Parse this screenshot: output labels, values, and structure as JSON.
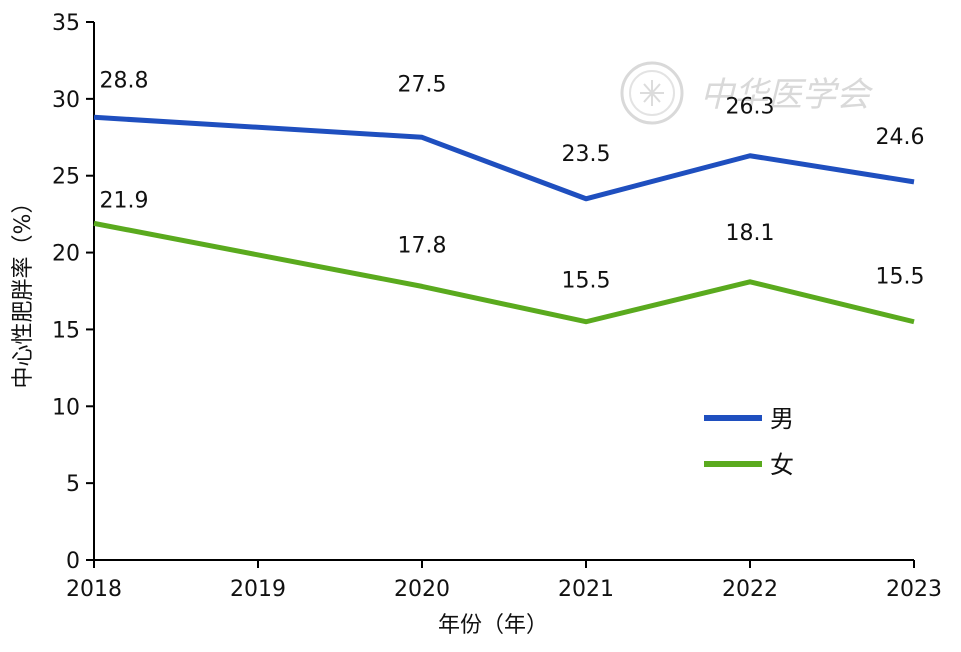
{
  "chart_data": {
    "type": "line",
    "xlabel": "年份（年）",
    "ylabel": "中心性肥胖率（%）",
    "categories": [
      "2018",
      "2019",
      "2020",
      "2021",
      "2022",
      "2023"
    ],
    "ylim": [
      0,
      35
    ],
    "yticks": [
      0,
      5,
      10,
      15,
      20,
      25,
      30,
      35
    ],
    "legend_position": "right",
    "grid": false,
    "series": [
      {
        "name": "男",
        "color": "#1f4fbf",
        "x": [
          "2018",
          "2020",
          "2021",
          "2022",
          "2023"
        ],
        "values": [
          28.8,
          27.5,
          23.5,
          26.3,
          24.6
        ],
        "labels": [
          "28.8",
          "27.5",
          "23.5",
          "26.3",
          "24.6"
        ]
      },
      {
        "name": "女",
        "color": "#5aaa1e",
        "x": [
          "2018",
          "2020",
          "2021",
          "2022",
          "2023"
        ],
        "values": [
          21.9,
          17.8,
          15.5,
          18.1,
          15.5
        ],
        "labels": [
          "21.9",
          "17.8",
          "15.5",
          "18.1",
          "15.5"
        ]
      }
    ]
  },
  "watermark": {
    "text": "中华医学会"
  }
}
